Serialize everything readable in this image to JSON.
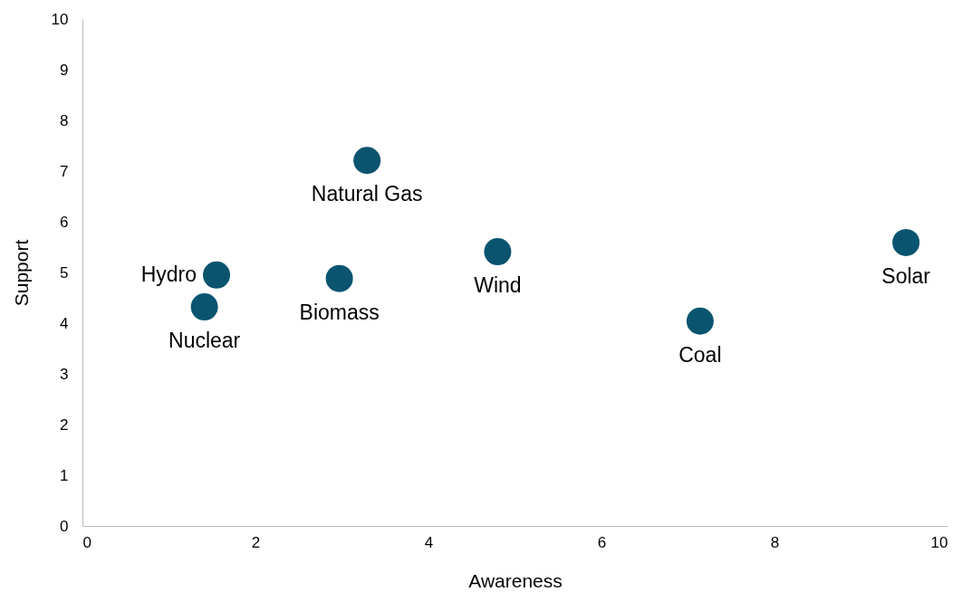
{
  "chart_data": {
    "type": "scatter",
    "xlabel": "Awareness",
    "ylabel": "Support",
    "x": [
      1.55,
      1.41,
      3.29,
      2.97,
      4.8,
      7.14,
      9.52
    ],
    "series": [
      {
        "color": "#0a5470",
        "values": [
          4.95,
          4.32,
          7.21,
          4.88,
          5.41,
          4.04,
          5.59
        ]
      }
    ],
    "annotations": [
      {
        "text": "Hydro",
        "x": 1.55,
        "y": 4.95
      },
      {
        "text": "Nuclear",
        "x": 1.41,
        "y": 4.32
      },
      {
        "text": "Natural Gas",
        "x": 3.29,
        "y": 7.21
      },
      {
        "text": "Biomass",
        "x": 2.97,
        "y": 4.88
      },
      {
        "text": "Wind",
        "x": 4.8,
        "y": 5.41
      },
      {
        "text": "Coal",
        "x": 7.14,
        "y": 4.04
      },
      {
        "text": "Solar",
        "x": 9.52,
        "y": 5.59
      }
    ],
    "xlim": [
      0,
      10
    ],
    "xticks": [
      0,
      2,
      4,
      6,
      8,
      10
    ],
    "ylim": [
      0,
      10
    ],
    "yticks": [
      0,
      1,
      2,
      3,
      4,
      5,
      6,
      7,
      8,
      9,
      10
    ],
    "grid": false,
    "legend": false,
    "marker": "circle"
  }
}
